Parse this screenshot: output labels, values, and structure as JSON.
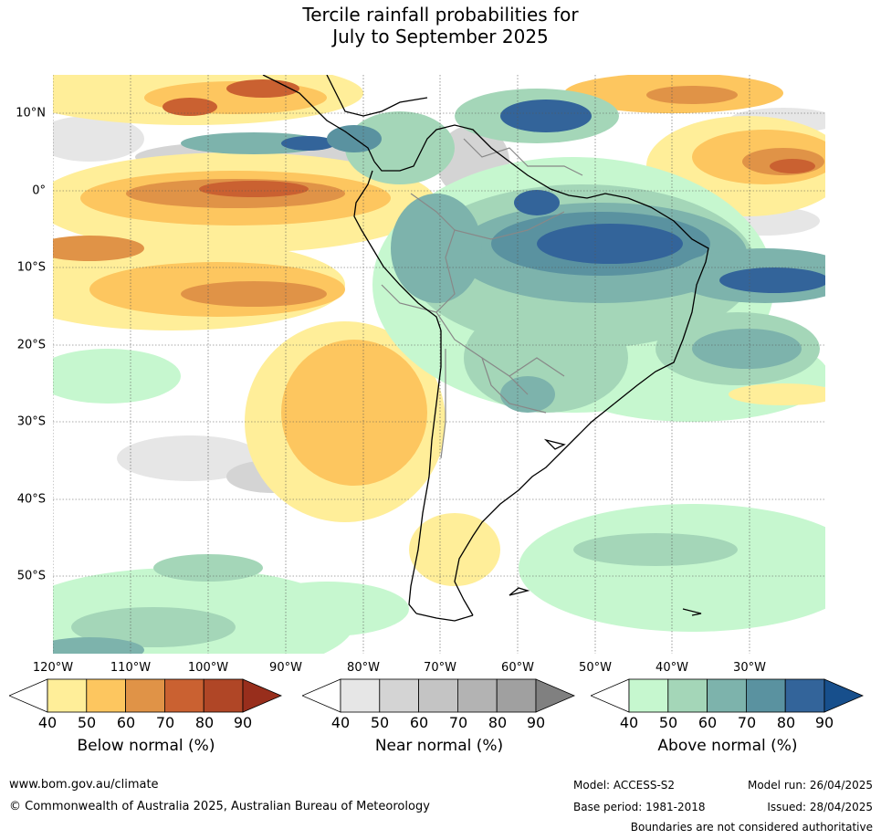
{
  "title": {
    "line1": "Tercile rainfall probabilities for",
    "line2": "July to September 2025"
  },
  "map": {
    "lat_labels": [
      "10°N",
      "0°",
      "10°S",
      "20°S",
      "30°S",
      "40°S",
      "50°S"
    ],
    "lon_labels": [
      "120°W",
      "110°W",
      "100°W",
      "90°W",
      "80°W",
      "70°W",
      "60°W",
      "50°W",
      "40°W",
      "30°W"
    ]
  },
  "legends": {
    "below": {
      "title": "Below normal (%)",
      "ticks": [
        "40",
        "50",
        "60",
        "70",
        "80",
        "90"
      ],
      "colors": [
        "#ffee99",
        "#fdc65f",
        "#e09347",
        "#ca6131",
        "#b04626",
        "#982e1c"
      ]
    },
    "near": {
      "title": "Near normal (%)",
      "ticks": [
        "40",
        "50",
        "60",
        "70",
        "80",
        "90"
      ],
      "colors": [
        "#e6e6e6",
        "#d4d4d4",
        "#c4c4c4",
        "#b3b3b3",
        "#a0a0a0",
        "#808080"
      ]
    },
    "above": {
      "title": "Above normal (%)",
      "ticks": [
        "40",
        "50",
        "60",
        "70",
        "80",
        "90"
      ],
      "colors": [
        "#c6f7cf",
        "#a4d6b8",
        "#7db3ac",
        "#5a92a0",
        "#33649a",
        "#174f8c"
      ]
    }
  },
  "footer": {
    "website": "www.bom.gov.au/climate",
    "copyright": "© Commonwealth of Australia 2025, Australian Bureau of Meteorology",
    "model": "Model: ACCESS-S2",
    "base_period": "Base period: 1981-2018",
    "model_run": "Model run: 26/04/2025",
    "issued": "Issued: 28/04/2025",
    "disclaimer": "Boundaries are not considered authoritative"
  }
}
